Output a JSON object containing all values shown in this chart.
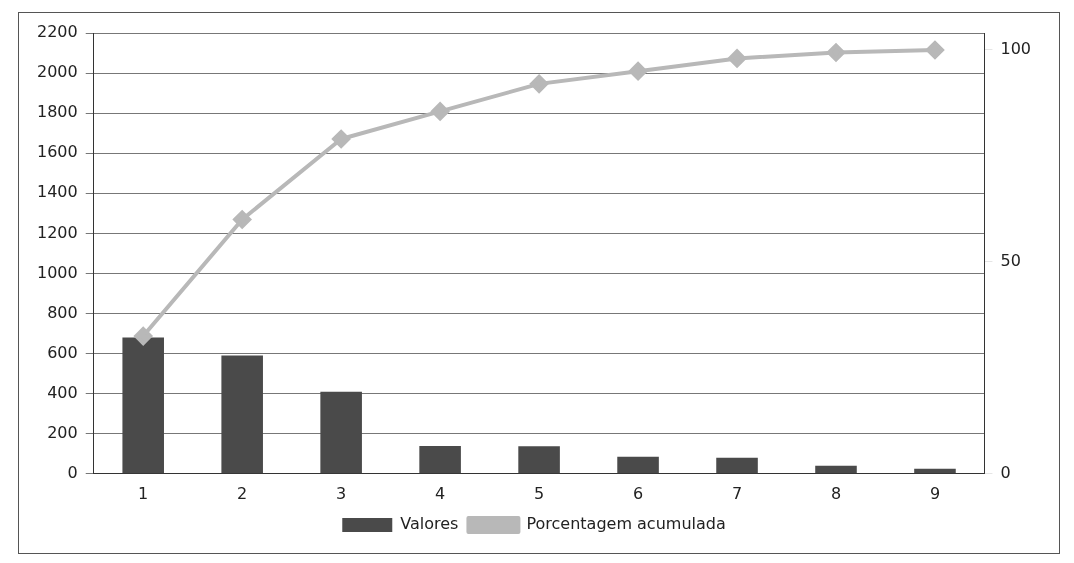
{
  "chart_data": {
    "type": "bar",
    "categories": [
      "1",
      "2",
      "3",
      "4",
      "5",
      "6",
      "7",
      "8",
      "9"
    ],
    "series": [
      {
        "name": "Valores",
        "color": "#4a4a4a",
        "values": [
          680,
          590,
          410,
          139,
          137,
          85,
          80,
          40,
          25
        ]
      },
      {
        "name": "Porcentagem acumulada",
        "type": "line",
        "axis": "y2",
        "color": "#b8b8b8",
        "values": [
          32.5,
          60,
          79,
          85.5,
          92,
          95,
          98,
          99.4,
          100
        ]
      }
    ],
    "ylim": [
      0,
      2200
    ],
    "yticks": [
      0,
      200,
      400,
      600,
      800,
      1000,
      1200,
      1400,
      1600,
      1800,
      2000,
      2200
    ],
    "y2lim": [
      0,
      104
    ],
    "y2ticks": [
      0,
      50,
      100
    ],
    "grid": "y",
    "legend": "bottom",
    "marker": "diamond"
  }
}
